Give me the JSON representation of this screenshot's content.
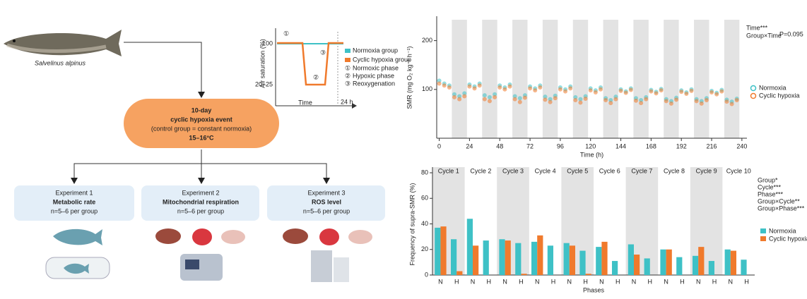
{
  "diagram": {
    "species": "Salvelinus alpinus",
    "event": [
      "10-day",
      "cyclic hypoxia event",
      "(control group = constant normoxia)",
      "15–16°C"
    ],
    "experiments": [
      {
        "title": "Experiment 1",
        "name": "Metabolic rate",
        "n": "n=5–6 per group"
      },
      {
        "title": "Experiment 2",
        "name": "Mitochondrial respiration",
        "n": "n=5–6 per group"
      },
      {
        "title": "Experiment 3",
        "name": "ROS level",
        "n": "n=5–6 per group"
      }
    ],
    "inset": {
      "ylabel": "Air saturation (%)",
      "yticks": [
        "100",
        "20–25"
      ],
      "xlabel": "Time",
      "xtick": "24 h",
      "legend": [
        "Normoxia group",
        "Cyclic hypoxia group"
      ],
      "phases": [
        {
          "marker": "①",
          "label": "Normoxic phase"
        },
        {
          "marker": "②",
          "label": "Hypoxic phase"
        },
        {
          "marker": "③",
          "label": "Reoxygenation"
        }
      ]
    }
  },
  "chart_data": [
    {
      "type": "scatter",
      "ylabel": "SMR (mg O₂ kg⁻¹ h⁻¹)",
      "xlabel": "Time (h)",
      "annotations": [
        "Time***",
        "Group×Time",
        "P=0.095"
      ],
      "x": [
        0,
        4,
        8,
        12,
        16,
        20,
        24,
        28,
        32,
        36,
        40,
        44,
        48,
        52,
        56,
        60,
        64,
        68,
        72,
        76,
        80,
        84,
        88,
        92,
        96,
        100,
        104,
        108,
        112,
        116,
        120,
        124,
        128,
        132,
        136,
        140,
        144,
        148,
        152,
        156,
        160,
        164,
        168,
        172,
        176,
        180,
        184,
        188,
        192,
        196,
        200,
        204,
        208,
        212,
        216,
        220,
        224,
        228,
        232,
        236
      ],
      "series": [
        {
          "name": "Normoxia",
          "color": "#3ec1c6",
          "values": [
            118,
            112,
            108,
            90,
            86,
            92,
            110,
            106,
            112,
            88,
            84,
            90,
            108,
            104,
            110,
            86,
            82,
            88,
            106,
            102,
            108,
            85,
            80,
            87,
            104,
            100,
            106,
            84,
            80,
            86,
            102,
            98,
            104,
            82,
            78,
            85,
            100,
            96,
            102,
            82,
            78,
            84,
            99,
            95,
            101,
            80,
            76,
            83,
            98,
            94,
            100,
            80,
            76,
            82,
            97,
            93,
            99,
            79,
            75,
            81
          ]
        },
        {
          "name": "Cyclic hypoxia",
          "color": "#f07a2c",
          "values": [
            112,
            108,
            104,
            84,
            80,
            86,
            106,
            102,
            108,
            80,
            76,
            84,
            104,
            100,
            106,
            80,
            74,
            83,
            102,
            98,
            104,
            79,
            74,
            82,
            100,
            96,
            102,
            78,
            73,
            81,
            98,
            94,
            100,
            78,
            72,
            80,
            97,
            93,
            99,
            77,
            72,
            80,
            96,
            92,
            98,
            76,
            71,
            79,
            95,
            91,
            97,
            76,
            71,
            78,
            94,
            90,
            96,
            75,
            70,
            78
          ]
        }
      ],
      "shaded": [
        [
          10,
          22
        ],
        [
          34,
          46
        ],
        [
          58,
          70
        ],
        [
          82,
          94
        ],
        [
          106,
          118
        ],
        [
          130,
          142
        ],
        [
          154,
          166
        ],
        [
          178,
          190
        ],
        [
          202,
          214
        ],
        [
          226,
          238
        ]
      ],
      "xlim": [
        -2,
        244
      ],
      "xticks": [
        0,
        24,
        48,
        72,
        96,
        120,
        144,
        168,
        192,
        216,
        240
      ],
      "ylim": [
        0,
        250
      ],
      "yticks": [
        100,
        200
      ]
    },
    {
      "type": "bar",
      "ylabel": "Frequency of supra-SMR (%)",
      "xlabel": "Phases",
      "groups": [
        "Cycle 1",
        "Cycle 2",
        "Cycle 3",
        "Cycle 4",
        "Cycle 5",
        "Cycle 6",
        "Cycle 7",
        "Cycle 8",
        "Cycle 9",
        "Cycle 10"
      ],
      "categories": [
        "N",
        "H",
        "N",
        "H",
        "N",
        "H",
        "N",
        "H",
        "N",
        "H",
        "N",
        "H",
        "N",
        "H",
        "N",
        "H",
        "N",
        "H",
        "N",
        "H"
      ],
      "series": [
        {
          "name": "Normoxia",
          "color": "#3ec1c6",
          "values": [
            37,
            28,
            44,
            27,
            28,
            25,
            26,
            23,
            25,
            19,
            22,
            11,
            24,
            13,
            20,
            14,
            15,
            11,
            20,
            12
          ]
        },
        {
          "name": "Cyclic hypoxia",
          "color": "#f07a2c",
          "values": [
            38,
            3,
            23,
            0,
            27,
            1,
            31,
            0,
            23,
            1,
            26,
            0,
            16,
            0,
            20,
            0,
            22,
            0,
            19,
            0
          ]
        }
      ],
      "annotations": [
        "Group*",
        "Cycle***",
        "Phase***",
        "Group×Cycle**",
        "Group×Phase***"
      ],
      "ylim": [
        0,
        80
      ],
      "yticks": [
        0,
        20,
        40,
        60,
        80
      ]
    }
  ]
}
